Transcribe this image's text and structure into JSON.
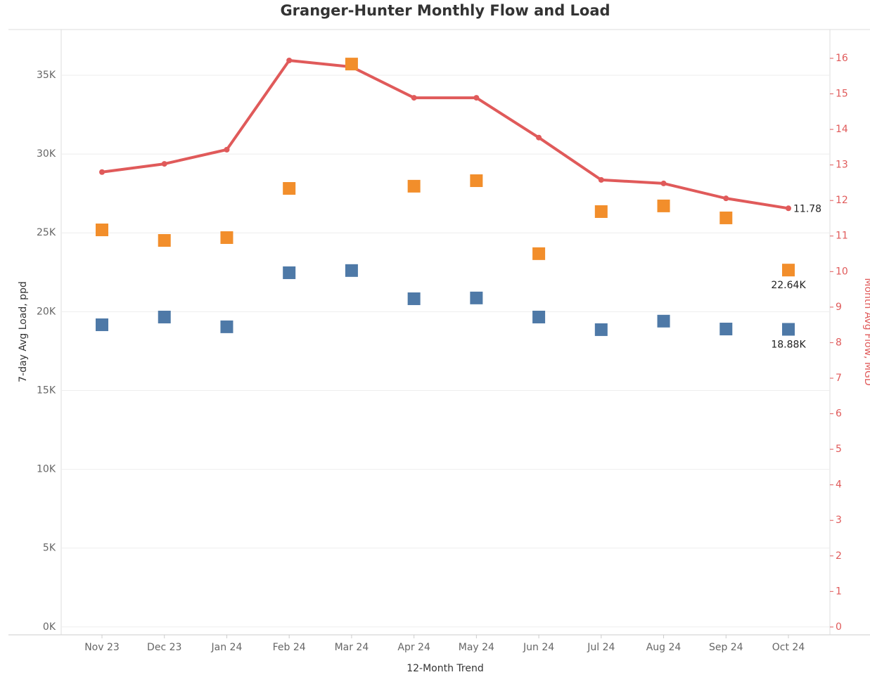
{
  "chart_data": {
    "type": "line_scatter_dual",
    "title": "Granger-Hunter Monthly Flow and Load",
    "x_label": "12-Month Trend",
    "y_label": "7-day Avg Load, ppd",
    "y2_label": "Month Avg Flow, MGD",
    "categories": [
      "Nov 23",
      "Dec 23",
      "Jan 24",
      "Feb 24",
      "Mar 24",
      "Apr 24",
      "May 24",
      "Jun 24",
      "Jul 24",
      "Aug 24",
      "Sep 24",
      "Oct 24"
    ],
    "ylim": [
      -500,
      37900
    ],
    "yticks": [
      {
        "value": 0,
        "label": "0K"
      },
      {
        "value": 5000,
        "label": "5K"
      },
      {
        "value": 10000,
        "label": "10K"
      },
      {
        "value": 15000,
        "label": "15K"
      },
      {
        "value": 20000,
        "label": "20K"
      },
      {
        "value": 25000,
        "label": "25K"
      },
      {
        "value": 30000,
        "label": "30K"
      },
      {
        "value": 35000,
        "label": "35K"
      }
    ],
    "y2lim": [
      -0.22,
      16.81
    ],
    "y2ticks": [
      0,
      1,
      2,
      3,
      4,
      5,
      6,
      7,
      8,
      9,
      10,
      11,
      12,
      13,
      14,
      15,
      16
    ],
    "grid": true,
    "series": [
      {
        "type": "scatter",
        "color": "#f28e2b",
        "values": [
          25190,
          24520,
          24700,
          27820,
          35710,
          27960,
          28310,
          23680,
          26350,
          26710,
          25950,
          22640
        ],
        "value_labels": [
          null,
          null,
          null,
          null,
          null,
          null,
          null,
          null,
          null,
          null,
          null,
          "22.64K"
        ]
      },
      {
        "type": "scatter",
        "color": "#4e79a7",
        "values": [
          19170,
          19660,
          19040,
          22470,
          22610,
          20820,
          20870,
          19660,
          18860,
          19400,
          18900,
          18880
        ],
        "value_labels": [
          null,
          null,
          null,
          null,
          null,
          null,
          null,
          null,
          null,
          null,
          null,
          "18.88K"
        ]
      },
      {
        "type": "line",
        "axis": "y2",
        "color": "#e05a5a",
        "values": [
          12.8,
          13.03,
          13.43,
          15.94,
          15.76,
          14.89,
          14.89,
          13.77,
          12.58,
          12.48,
          12.06,
          11.78
        ],
        "value_labels": [
          null,
          null,
          null,
          null,
          null,
          null,
          null,
          null,
          null,
          null,
          null,
          "11.78"
        ]
      }
    ]
  }
}
